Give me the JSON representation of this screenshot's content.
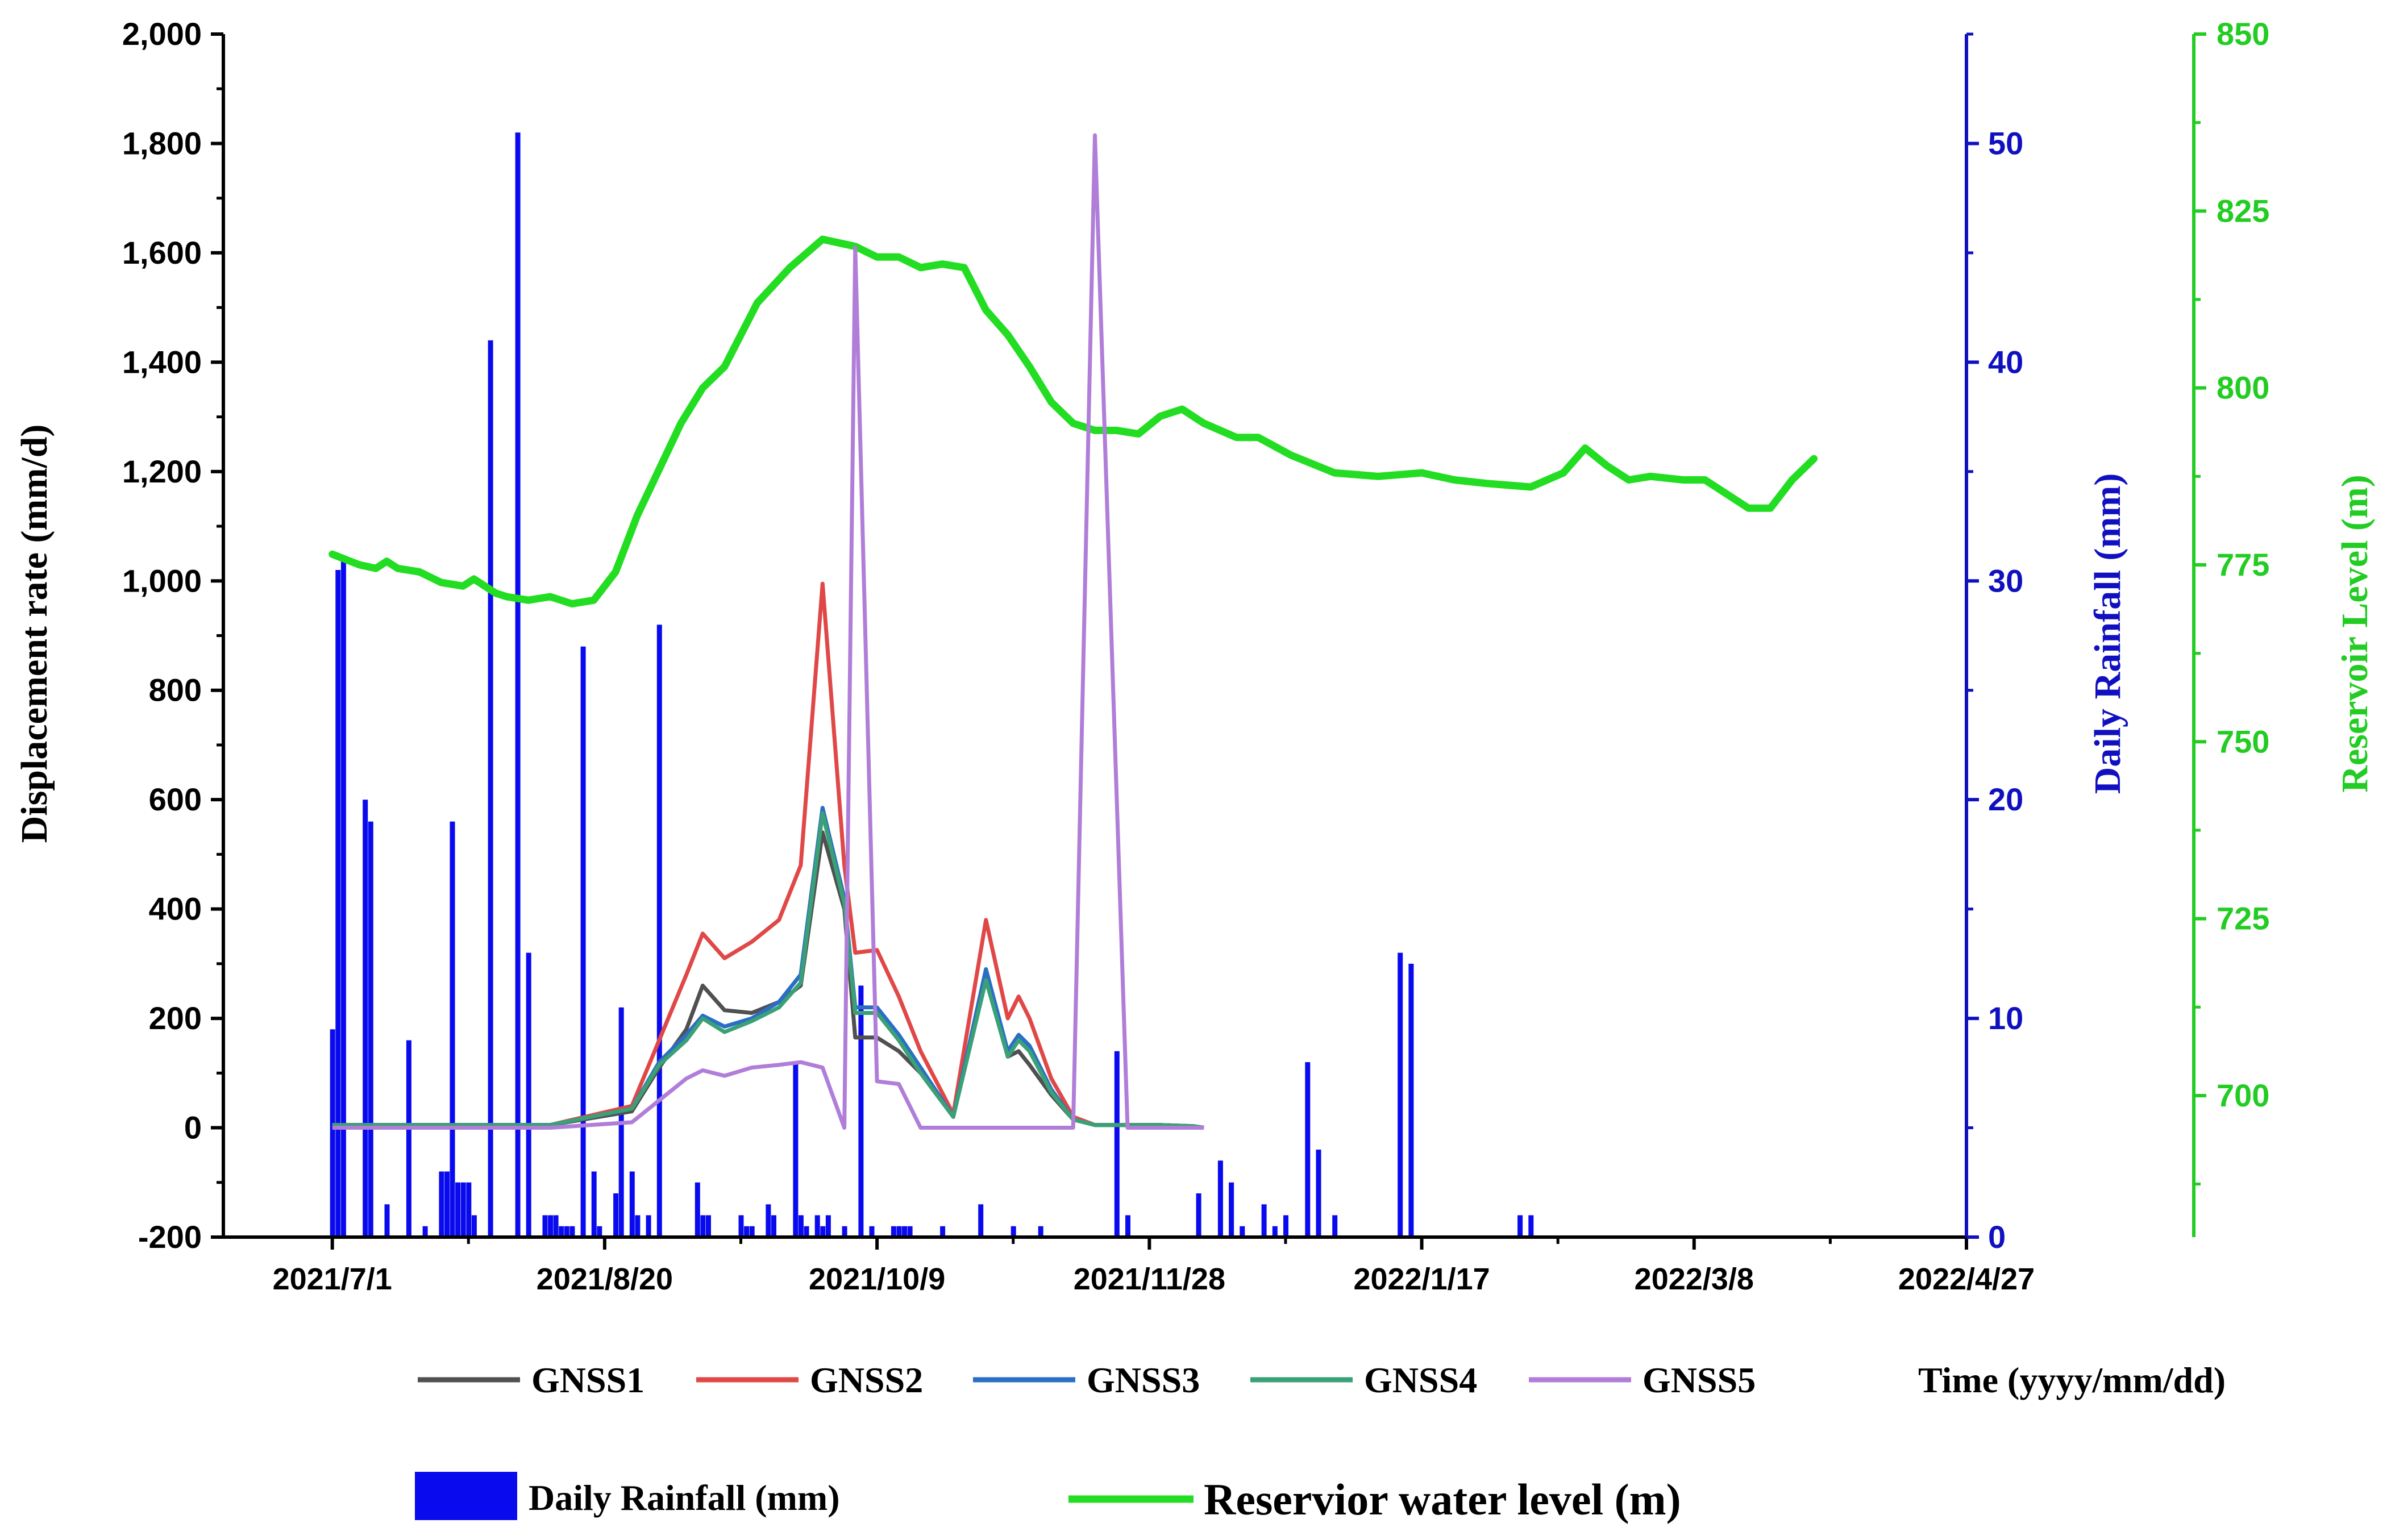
{
  "chart_data": {
    "type": "line",
    "title": "",
    "xlabel": "Time (yyyy/mm/dd)",
    "x_tick_labels": [
      "2021/7/1",
      "2021/8/20",
      "2021/10/9",
      "2021/11/28",
      "2022/1/17",
      "2022/3/8",
      "2022/4/27"
    ],
    "xlim_days": [
      -20,
      300
    ],
    "ylabel_left": "Displacement rate (mm/d)",
    "ylabel_right1": "Daily Rainfall (mm)",
    "ylabel_right2": "Reservoir Level (m)",
    "ylim_left": [
      -200,
      2000
    ],
    "yticks_left": [
      -200,
      0,
      200,
      400,
      600,
      800,
      1000,
      1200,
      1400,
      1600,
      1800,
      2000
    ],
    "ytick_labels_left": [
      "-200",
      "0",
      "200",
      "400",
      "600",
      "800",
      "1,000",
      "1,200",
      "1,400",
      "1,600",
      "1,800",
      "2,000"
    ],
    "ylim_rainfall": [
      0,
      55
    ],
    "yticks_rainfall": [
      0,
      10,
      20,
      30,
      40,
      50
    ],
    "ytick_labels_rainfall": [
      "0",
      "10",
      "20",
      "30",
      "40",
      "50"
    ],
    "ylim_level": [
      680,
      850
    ],
    "yticks_level": [
      700,
      725,
      750,
      775,
      800,
      825,
      850
    ],
    "ytick_labels_level": [
      "700",
      "725",
      "750",
      "775",
      "800",
      "825",
      "850"
    ],
    "colors": {
      "GNSS1": "#505050",
      "GNSS2": "#e04848",
      "GNSS3": "#2a6fc4",
      "GNSS4": "#3aa078",
      "GNSS5": "#b07ed8",
      "rainfall": "#0a0aee",
      "level": "#22dd22",
      "axis_rain": "#1010c0",
      "axis_level": "#22cc22"
    },
    "legend": {
      "GNSS1": "GNSS1",
      "GNSS2": "GNSS2",
      "GNSS3": "GNSS3",
      "GNSS4": "GNSS4",
      "GNSS5": "GNSS5",
      "rainfall": "Daily Rainfall (mm)",
      "level": "Reservior water level (m)"
    },
    "series_displacement": [
      {
        "name": "GNSS1",
        "x": [
          0,
          40,
          55,
          60,
          65,
          68,
          72,
          77,
          82,
          86,
          90,
          94,
          96,
          100,
          104,
          108,
          114,
          120,
          124,
          126,
          128,
          132,
          136,
          140,
          146,
          152,
          158,
          160
        ],
        "y": [
          5,
          5,
          30,
          110,
          180,
          260,
          215,
          210,
          230,
          260,
          540,
          400,
          165,
          165,
          140,
          100,
          20,
          280,
          130,
          140,
          115,
          60,
          15,
          5,
          5,
          5,
          3,
          0
        ]
      },
      {
        "name": "GNSS2",
        "x": [
          0,
          40,
          55,
          60,
          65,
          68,
          72,
          77,
          82,
          86,
          90,
          94,
          96,
          100,
          104,
          108,
          114,
          120,
          124,
          126,
          128,
          132,
          136,
          140,
          146,
          152,
          158,
          160
        ],
        "y": [
          5,
          5,
          40,
          160,
          280,
          355,
          310,
          340,
          380,
          480,
          995,
          480,
          320,
          325,
          240,
          140,
          25,
          380,
          200,
          240,
          200,
          90,
          20,
          5,
          5,
          5,
          3,
          0
        ]
      },
      {
        "name": "GNSS3",
        "x": [
          0,
          40,
          55,
          60,
          65,
          68,
          72,
          77,
          82,
          86,
          90,
          94,
          96,
          100,
          104,
          108,
          114,
          120,
          124,
          126,
          128,
          132,
          136,
          140,
          146,
          152,
          158,
          160
        ],
        "y": [
          5,
          5,
          35,
          120,
          170,
          205,
          185,
          200,
          230,
          280,
          585,
          420,
          220,
          220,
          170,
          110,
          20,
          290,
          140,
          170,
          150,
          70,
          15,
          5,
          5,
          5,
          3,
          0
        ]
      },
      {
        "name": "GNSS4",
        "x": [
          0,
          40,
          55,
          60,
          65,
          68,
          72,
          77,
          82,
          86,
          90,
          94,
          96,
          100,
          104,
          108,
          114,
          120,
          124,
          126,
          128,
          132,
          136,
          140,
          146,
          152,
          158,
          160
        ],
        "y": [
          5,
          5,
          35,
          115,
          160,
          200,
          175,
          195,
          220,
          265,
          575,
          410,
          210,
          210,
          160,
          100,
          20,
          270,
          130,
          160,
          140,
          65,
          15,
          5,
          5,
          5,
          3,
          0
        ]
      },
      {
        "name": "GNSS5",
        "x": [
          0,
          40,
          55,
          60,
          65,
          68,
          72,
          77,
          82,
          86,
          90,
          94,
          96,
          100,
          104,
          108,
          114,
          120,
          124,
          126,
          128,
          132,
          136,
          140,
          146,
          152,
          158,
          160
        ],
        "y": [
          0,
          0,
          10,
          50,
          90,
          105,
          95,
          110,
          115,
          120,
          110,
          0,
          1610,
          85,
          80,
          0,
          0,
          0,
          0,
          0,
          0,
          0,
          0,
          1815,
          0,
          0,
          0,
          0
        ]
      }
    ],
    "series_rainfall": {
      "days": [
        0,
        1,
        2,
        6,
        7,
        10,
        14,
        17,
        20,
        21,
        22,
        23,
        24,
        25,
        26,
        29,
        34,
        36,
        39,
        40,
        41,
        42,
        43,
        44,
        46,
        48,
        49,
        52,
        53,
        55,
        56,
        58,
        60,
        67,
        68,
        69,
        75,
        76,
        77,
        80,
        81,
        85,
        86,
        87,
        89,
        90,
        91,
        94,
        97,
        99,
        103,
        104,
        105,
        106,
        112,
        119,
        125,
        130,
        144,
        146,
        159,
        163,
        165,
        167,
        171,
        173,
        175,
        179,
        181,
        184,
        196,
        198,
        218,
        220
      ],
      "values": [
        9.5,
        30.5,
        31,
        20,
        19,
        1.5,
        9,
        0.5,
        3,
        3,
        19,
        2.5,
        2.5,
        2.5,
        1,
        41,
        50.5,
        13,
        1,
        1,
        1,
        0.5,
        0.5,
        0.5,
        27,
        3,
        0.5,
        2,
        10.5,
        3,
        1,
        1,
        28,
        2.5,
        1,
        1,
        1,
        0.5,
        0.5,
        1.5,
        1,
        8,
        1,
        0.5,
        1,
        0.5,
        1,
        0.5,
        11.5,
        0.5,
        0.5,
        0.5,
        0.5,
        0.5,
        0.5,
        1.5,
        0.5,
        0.5,
        8.5,
        1,
        2,
        3.5,
        2.5,
        0.5,
        1.5,
        0.5,
        1,
        8,
        4,
        1,
        13,
        12.5,
        1,
        1
      ]
    },
    "series_level": {
      "x": [
        0,
        5,
        8,
        10,
        12,
        16,
        20,
        24,
        26,
        30,
        32,
        36,
        40,
        44,
        48,
        52,
        56,
        60,
        64,
        68,
        72,
        78,
        84,
        90,
        96,
        100,
        104,
        108,
        112,
        116,
        120,
        124,
        128,
        132,
        136,
        140,
        144,
        148,
        152,
        156,
        160,
        166,
        170,
        176,
        184,
        192,
        200,
        206,
        212,
        220,
        226,
        230,
        234,
        238,
        242,
        248,
        252,
        256,
        260,
        264,
        268,
        272
      ],
      "y": [
        776.5,
        775,
        774.5,
        775.5,
        774.5,
        774,
        772.5,
        772,
        773,
        771,
        770.5,
        770,
        770.5,
        769.5,
        770,
        774,
        782,
        788.5,
        795,
        800,
        803,
        812,
        817,
        821,
        820,
        818.5,
        818.5,
        817,
        817.5,
        817,
        811,
        807.5,
        803,
        798,
        795,
        794,
        794,
        793.5,
        796,
        797,
        795,
        793,
        793,
        790.5,
        788,
        787.5,
        788,
        787,
        786.5,
        786,
        788,
        791.5,
        789,
        787,
        787.5,
        787,
        787,
        785,
        783,
        783,
        787,
        790
      ]
    }
  }
}
